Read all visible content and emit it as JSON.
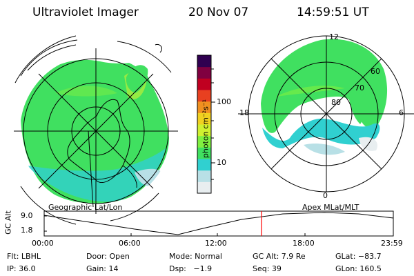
{
  "header": {
    "instrument": "Ultraviolet Imager",
    "date": "20 Nov 07",
    "time": "14:59:51 UT"
  },
  "maps": {
    "left_label": "Geographic Lat/Lon",
    "right_label": "Apex MLat/MLT",
    "right_mlt_ticks": [
      "12",
      "18",
      "6",
      "0"
    ],
    "right_lat_rings": [
      "60",
      "70",
      "80"
    ]
  },
  "colorbar": {
    "unit_label": "photon cm⁻²s⁻¹",
    "ticks": [
      "100",
      "10"
    ],
    "colors": [
      "#e8eef0",
      "#b8e0e6",
      "#30d0d0",
      "#40e060",
      "#80f040",
      "#d0f030",
      "#f0d020",
      "#f09020",
      "#e84020",
      "#c00020",
      "#800040",
      "#300050"
    ]
  },
  "altitude_plot": {
    "y_title": "GC Alt",
    "y_ticks": [
      "9.0",
      "1.8"
    ],
    "x_ticks": [
      "00:00",
      "06:00",
      "12:00",
      "18:00",
      "23:59"
    ],
    "current_time_marker_color": "#ff0000"
  },
  "status": {
    "row1": {
      "filter": "Flt: LBHL",
      "door": "Door: Open",
      "mode": "Mode: Normal",
      "gc_alt": "GC Alt: 7.9 Re",
      "glat": "GLat: −83.7"
    },
    "row2": {
      "ip": "IP: 36.0",
      "gain": "Gain: 14",
      "dsp": "Dsp:   −1.9",
      "seq": "Seq: 39",
      "glon": "GLon: 160.5"
    }
  }
}
